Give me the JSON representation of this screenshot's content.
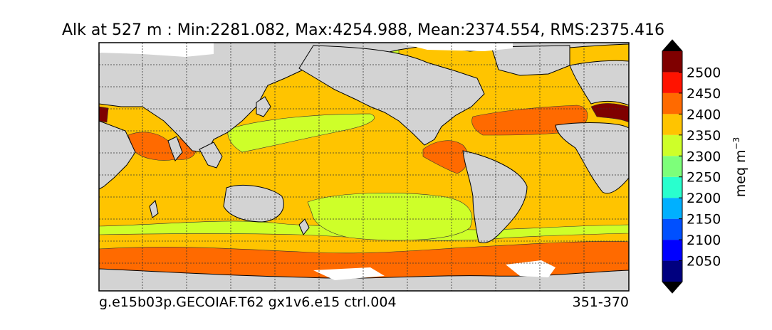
{
  "chart_data": {
    "type": "heatmap",
    "title": "Alk at 527 m : Min:2281.082, Max:4254.988, Mean:2374.554, RMS:2375.416",
    "caption_left": "g.e15b03p.GECOIAF.T62 gx1v6.e15 ctrl.004",
    "caption_right": "351-370",
    "projection": "global cylindrical map, longitude 30E to 390E, latitude 78S to 90N",
    "grid": true,
    "colorbar": {
      "label_main": "meq m",
      "label_exp": "−3",
      "extend": "both",
      "bounds": [
        2000,
        2050,
        2100,
        2150,
        2200,
        2250,
        2300,
        2350,
        2400,
        2450,
        2500,
        2550
      ],
      "tick_labels": [
        "2050",
        "2100",
        "2150",
        "2200",
        "2250",
        "2300",
        "2350",
        "2400",
        "2450",
        "2500"
      ],
      "tick_values": [
        2050,
        2100,
        2150,
        2200,
        2250,
        2300,
        2350,
        2400,
        2450,
        2500
      ],
      "colors": [
        "#00007f",
        "#0000ff",
        "#0050ff",
        "#00b0ff",
        "#29ffce",
        "#7dff7a",
        "#ceff29",
        "#ffc400",
        "#ff6a00",
        "#ff1300",
        "#7f0000"
      ],
      "under_color": "#000000",
      "over_color": "#000000"
    },
    "map_colors": {
      "land": "#d3d3d3",
      "missing": "#ffffff",
      "coast": "#000000"
    }
  }
}
